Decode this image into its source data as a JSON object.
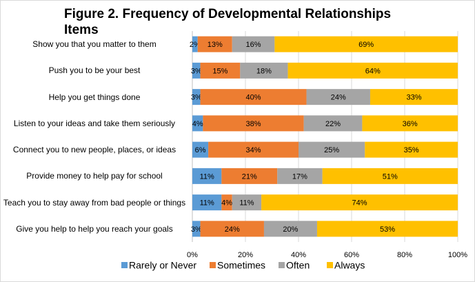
{
  "chart_data": {
    "type": "stacked-barh",
    "title": "Figure 2. Frequency of Developmental Relationships Items",
    "categories": [
      "Show you that you matter to them",
      "Push you to be your best",
      "Help you get things done",
      "Listen to your ideas and take them seriously",
      "Connect you to new people, places, or ideas",
      "Provide money to help pay for school",
      "Teach you to stay away from bad people or things",
      "Give you help to help you reach your goals"
    ],
    "series": [
      {
        "name": "Rarely or Never",
        "color": "#5b9bd5",
        "values": [
          2,
          3,
          3,
          4,
          6,
          11,
          11,
          3
        ],
        "value_labels": [
          "2%",
          "3%",
          "3%",
          "4%",
          "6%",
          "11%",
          "11%",
          "3%"
        ]
      },
      {
        "name": "Sometimes",
        "color": "#ed7d31",
        "values": [
          13,
          15,
          40,
          38,
          34,
          21,
          4,
          24
        ],
        "value_labels": [
          "13%",
          "15%",
          "40%",
          "38%",
          "34%",
          "21%",
          "4%",
          "24%"
        ]
      },
      {
        "name": "Often",
        "color": "#a5a5a5",
        "values": [
          16,
          18,
          24,
          22,
          25,
          17,
          11,
          20
        ],
        "value_labels": [
          "16%",
          "18%",
          "24%",
          "22%",
          "25%",
          "17%",
          "11%",
          "20%"
        ]
      },
      {
        "name": "Always",
        "color": "#ffc000",
        "values": [
          69,
          64,
          33,
          36,
          35,
          51,
          74,
          53
        ],
        "value_labels": [
          "69%",
          "64%",
          "33%",
          "36%",
          "35%",
          "51%",
          "74%",
          "53%"
        ]
      }
    ],
    "xlim": [
      0,
      100
    ],
    "xticks": [
      {
        "value": 0,
        "label": "0%"
      },
      {
        "value": 20,
        "label": "20%"
      },
      {
        "value": 40,
        "label": "40%"
      },
      {
        "value": 60,
        "label": "60%"
      },
      {
        "value": 80,
        "label": "80%"
      },
      {
        "value": 100,
        "label": "100%"
      }
    ],
    "grid": true,
    "legend": "bottom"
  }
}
